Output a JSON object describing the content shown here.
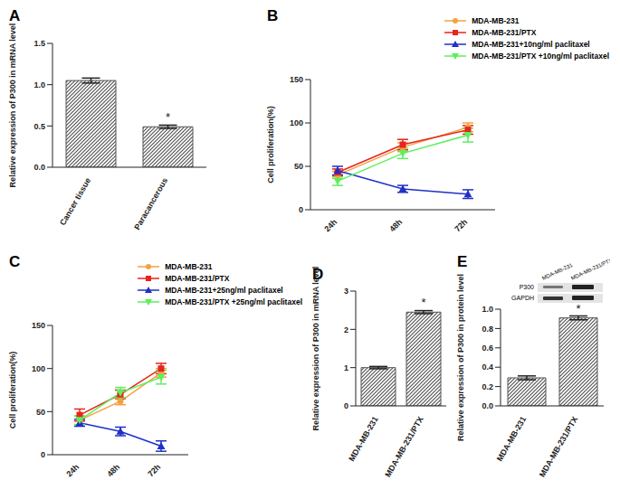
{
  "chart_data": [
    {
      "type": "bar",
      "title": "A",
      "y_label": "Relative expression of P300 in mRNA level",
      "categories": [
        "Cancer tissue",
        "Paracancerous"
      ],
      "values": [
        1.05,
        0.49
      ],
      "error": [
        0.03,
        0.02
      ],
      "color": "#555555",
      "ylim": [
        0,
        1.5
      ],
      "yticks": [
        {
          "value": 0,
          "label": "0.0"
        },
        0.5,
        {
          "value": 1,
          "label": "1.0"
        },
        1.5
      ],
      "annotations": [
        {
          "x": "Paracancerous",
          "text": "*"
        }
      ]
    },
    {
      "type": "line",
      "title": "B",
      "y_label": "Cell proliferation(%)",
      "categories": [
        "24h",
        "48h",
        "72h"
      ],
      "ylim": [
        0,
        150
      ],
      "yticks": [
        0,
        50,
        100,
        150
      ],
      "legend": "top right",
      "series": [
        {
          "name": "MDA-MB-231",
          "color": "#f5a142",
          "marker": "circle",
          "values": [
            40,
            72,
            95
          ],
          "error": [
            4,
            5,
            5
          ]
        },
        {
          "name": "MDA-MB-231/PTX",
          "color": "#e8241c",
          "marker": "square",
          "values": [
            43,
            75,
            92
          ],
          "error": [
            4,
            6,
            5
          ]
        },
        {
          "name": "MDA-MB-231+10ng/ml  paclitaxel",
          "color": "#1f2fc8",
          "marker": "triangle-up",
          "values": [
            45,
            24,
            18
          ],
          "error": [
            5,
            4,
            5
          ]
        },
        {
          "name": "MDA-MB-231/PTX +10ng/ml  paclitaxel",
          "color": "#5cf05c",
          "marker": "triangle-down",
          "values": [
            33,
            65,
            86
          ],
          "error": [
            5,
            6,
            8
          ]
        }
      ]
    },
    {
      "type": "line",
      "title": "C",
      "y_label": "Cell proliferation(%)",
      "categories": [
        "24h",
        "48h",
        "72h"
      ],
      "ylim": [
        0,
        150
      ],
      "yticks": [
        0,
        50,
        100,
        150
      ],
      "legend": "top right",
      "series": [
        {
          "name": "MDA-MB-231",
          "color": "#f5a142",
          "marker": "circle",
          "values": [
            40,
            62,
            95
          ],
          "error": [
            5,
            4,
            5
          ]
        },
        {
          "name": "MDA-MB-231/PTX",
          "color": "#e8241c",
          "marker": "square",
          "values": [
            46,
            70,
            100
          ],
          "error": [
            7,
            5,
            6
          ]
        },
        {
          "name": "MDA-MB-231+25ng/ml  paclitaxel",
          "color": "#1f2fc8",
          "marker": "triangle-up",
          "values": [
            37,
            27,
            10
          ],
          "error": [
            4,
            5,
            6
          ]
        },
        {
          "name": "MDA-MB-231/PTX +25ng/ml  paclitaxel",
          "color": "#5cf05c",
          "marker": "triangle-down",
          "values": [
            40,
            72,
            90
          ],
          "error": [
            5,
            6,
            8
          ]
        }
      ]
    },
    {
      "type": "bar",
      "title": "D",
      "y_label": "Relative expression of P300 in mRNA level",
      "categories": [
        "MDA-MB-231",
        "MDA-MB-231/PTX"
      ],
      "values": [
        1.0,
        2.45
      ],
      "error": [
        0.03,
        0.04
      ],
      "color": "#555555",
      "ylim": [
        0,
        3
      ],
      "yticks": [
        0,
        1,
        2,
        3
      ],
      "annotations": [
        {
          "x": "MDA-MB-231/PTX",
          "text": "*"
        }
      ]
    },
    {
      "type": "bar",
      "title": "E",
      "y_label": "Relative expression of P300 in protein level",
      "categories": [
        "MDA-MB-231",
        "MDA-MB-231/PTX"
      ],
      "values": [
        0.29,
        0.91
      ],
      "error": [
        0.02,
        0.02
      ],
      "color": "#555555",
      "ylim": [
        0,
        1.0
      ],
      "yticks": [
        {
          "value": 0,
          "label": "0.0"
        },
        0.2,
        0.4,
        0.6,
        0.8,
        {
          "value": 1,
          "label": "1.0"
        }
      ],
      "annotations": [
        {
          "x": "MDA-MB-231/PTX",
          "text": "*"
        }
      ],
      "inset": {
        "columns": [
          "MDA-MB-231",
          "MDA-MB-231/PTX"
        ],
        "rows": [
          "P300",
          "GAPDH"
        ]
      }
    }
  ]
}
